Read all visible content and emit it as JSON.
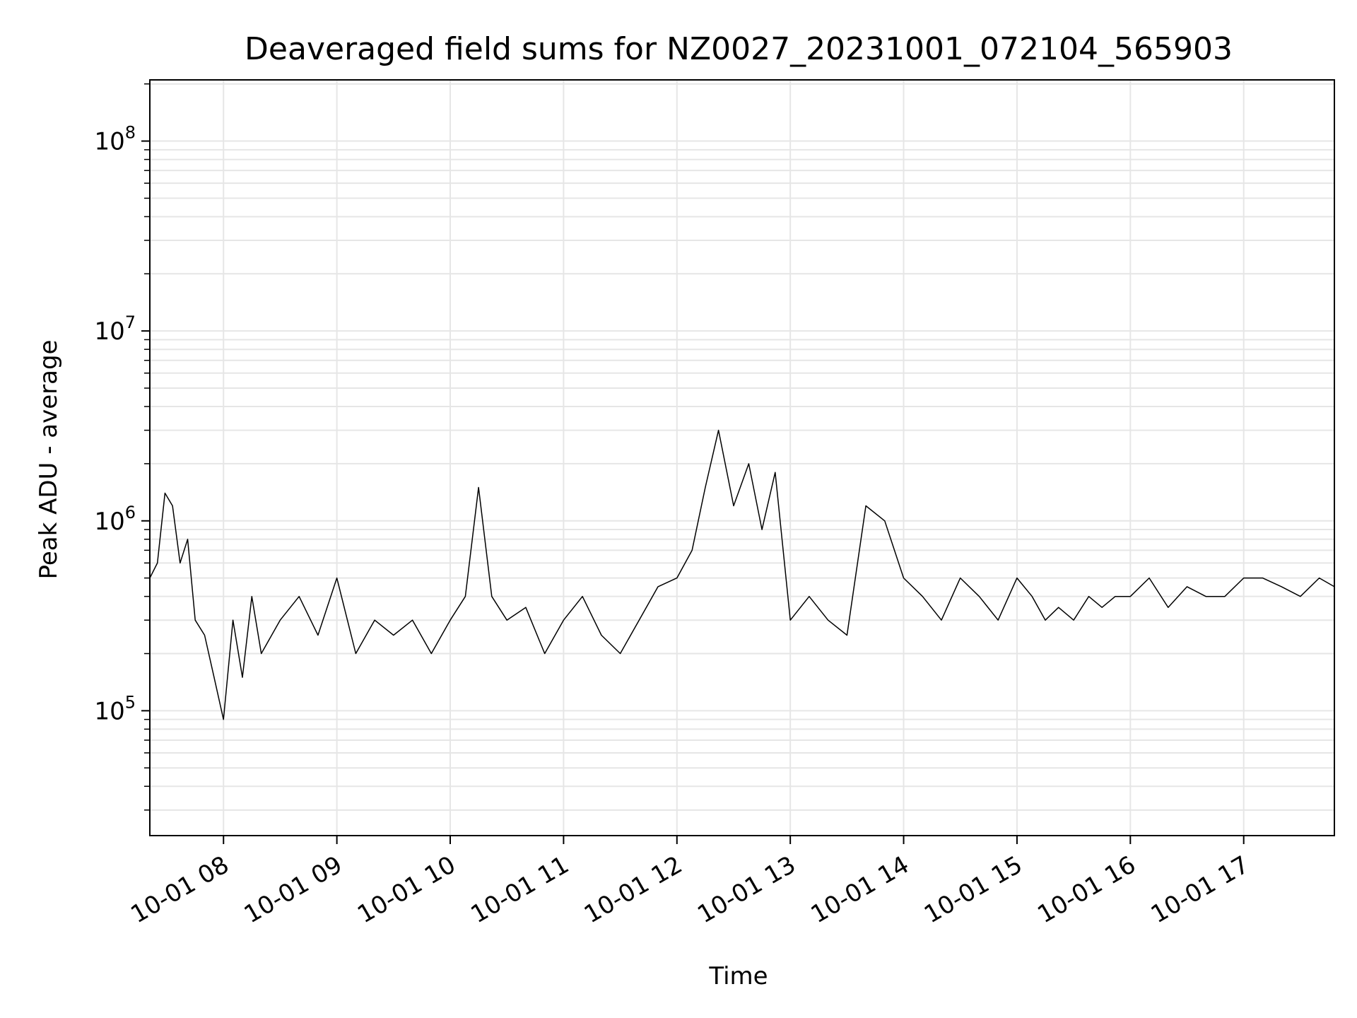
{
  "chart_data": {
    "type": "line",
    "title": "Deaveraged field sums for NZ0027_20231001_072104_565903",
    "xlabel": "Time",
    "ylabel": "Peak ADU - average",
    "yscale": "log",
    "grid": true,
    "line_color": "#000000",
    "grid_color": "#e6e6e6",
    "xlim": [
      "2023-10-01 07:21",
      "2023-10-01 17:48"
    ],
    "ylim": [
      22000,
      210000000
    ],
    "x_tick_labels": [
      "10-01 08",
      "10-01 09",
      "10-01 10",
      "10-01 11",
      "10-01 12",
      "10-01 13",
      "10-01 14",
      "10-01 15",
      "10-01 16",
      "10-01 17"
    ],
    "x_tick_times": [
      "2023-10-01 08:00",
      "2023-10-01 09:00",
      "2023-10-01 10:00",
      "2023-10-01 11:00",
      "2023-10-01 12:00",
      "2023-10-01 13:00",
      "2023-10-01 14:00",
      "2023-10-01 15:00",
      "2023-10-01 16:00",
      "2023-10-01 17:00"
    ],
    "y_ticks": [
      {
        "value": 100000,
        "base": "10",
        "exp": "5"
      },
      {
        "value": 1000000,
        "base": "10",
        "exp": "6"
      },
      {
        "value": 10000000,
        "base": "10",
        "exp": "7"
      },
      {
        "value": 100000000,
        "base": "10",
        "exp": "8"
      }
    ],
    "series": [
      {
        "x": [
          "2023-10-01 07:21",
          "2023-10-01 07:25",
          "2023-10-01 07:29",
          "2023-10-01 07:33",
          "2023-10-01 07:37",
          "2023-10-01 07:41",
          "2023-10-01 07:45",
          "2023-10-01 07:50",
          "2023-10-01 07:55",
          "2023-10-01 08:00",
          "2023-10-01 08:05",
          "2023-10-01 08:10",
          "2023-10-01 08:15",
          "2023-10-01 08:20",
          "2023-10-01 08:30",
          "2023-10-01 08:40",
          "2023-10-01 08:50",
          "2023-10-01 09:00",
          "2023-10-01 09:10",
          "2023-10-01 09:20",
          "2023-10-01 09:30",
          "2023-10-01 09:40",
          "2023-10-01 09:50",
          "2023-10-01 10:00",
          "2023-10-01 10:08",
          "2023-10-01 10:15",
          "2023-10-01 10:22",
          "2023-10-01 10:30",
          "2023-10-01 10:40",
          "2023-10-01 10:50",
          "2023-10-01 11:00",
          "2023-10-01 11:10",
          "2023-10-01 11:20",
          "2023-10-01 11:30",
          "2023-10-01 11:40",
          "2023-10-01 11:50",
          "2023-10-01 12:00",
          "2023-10-01 12:08",
          "2023-10-01 12:15",
          "2023-10-01 12:22",
          "2023-10-01 12:30",
          "2023-10-01 12:38",
          "2023-10-01 12:45",
          "2023-10-01 12:52",
          "2023-10-01 13:00",
          "2023-10-01 13:10",
          "2023-10-01 13:20",
          "2023-10-01 13:30",
          "2023-10-01 13:40",
          "2023-10-01 13:50",
          "2023-10-01 14:00",
          "2023-10-01 14:10",
          "2023-10-01 14:20",
          "2023-10-01 14:30",
          "2023-10-01 14:40",
          "2023-10-01 14:50",
          "2023-10-01 15:00",
          "2023-10-01 15:08",
          "2023-10-01 15:15",
          "2023-10-01 15:22",
          "2023-10-01 15:30",
          "2023-10-01 15:38",
          "2023-10-01 15:45",
          "2023-10-01 15:52",
          "2023-10-01 16:00",
          "2023-10-01 16:10",
          "2023-10-01 16:20",
          "2023-10-01 16:30",
          "2023-10-01 16:40",
          "2023-10-01 16:50",
          "2023-10-01 17:00",
          "2023-10-01 17:10",
          "2023-10-01 17:20",
          "2023-10-01 17:30",
          "2023-10-01 17:40",
          "2023-10-01 17:48"
        ],
        "y": [
          500000,
          600000,
          1400000,
          1200000,
          600000,
          800000,
          300000,
          250000,
          150000,
          90000,
          300000,
          150000,
          400000,
          200000,
          300000,
          400000,
          250000,
          500000,
          200000,
          300000,
          250000,
          300000,
          200000,
          300000,
          400000,
          1500000,
          400000,
          300000,
          350000,
          200000,
          300000,
          400000,
          250000,
          200000,
          300000,
          450000,
          500000,
          700000,
          1500000,
          3000000,
          1200000,
          2000000,
          900000,
          1800000,
          300000,
          400000,
          300000,
          250000,
          1200000,
          1000000,
          500000,
          400000,
          300000,
          500000,
          400000,
          300000,
          500000,
          400000,
          300000,
          350000,
          300000,
          400000,
          350000,
          400000,
          400000,
          500000,
          350000,
          450000,
          400000,
          400000,
          500000,
          500000,
          450000,
          400000,
          500000,
          450000
        ]
      }
    ]
  }
}
